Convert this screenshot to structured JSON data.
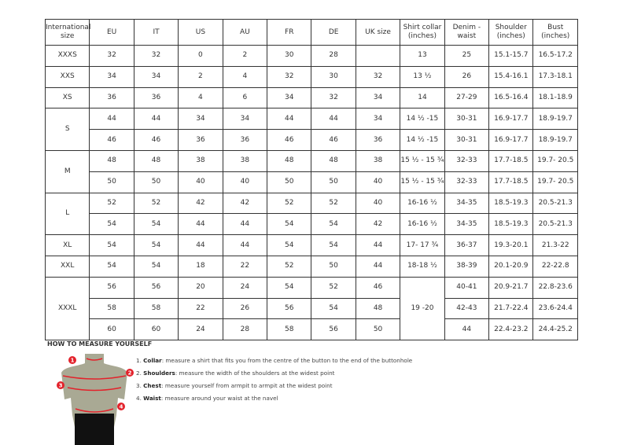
{
  "table": {
    "headers": [
      "International size",
      "EU",
      "IT",
      "US",
      "AU",
      "FR",
      "DE",
      "UK size",
      "Shirt collar (inches)",
      "Denim - waist",
      "Shoulder (inches)",
      "Bust (inches)"
    ],
    "groups": [
      {
        "size": "XXXS",
        "rows": [
          [
            "32",
            "32",
            "0",
            "2",
            "30",
            "28",
            "",
            "13",
            "25",
            "15.1-15.7",
            "16.5-17.2"
          ]
        ]
      },
      {
        "size": "XXS",
        "rows": [
          [
            "34",
            "34",
            "2",
            "4",
            "32",
            "30",
            "32",
            "13 ½",
            "26",
            "15.4-16.1",
            "17.3-18.1"
          ]
        ]
      },
      {
        "size": "XS",
        "rows": [
          [
            "36",
            "36",
            "4",
            "6",
            "34",
            "32",
            "34",
            "14",
            "27-29",
            "16.5-16.4",
            "18.1-18.9"
          ]
        ]
      },
      {
        "size": "S",
        "rows": [
          [
            "44",
            "44",
            "34",
            "34",
            "44",
            "44",
            "34",
            "14 ½ -15",
            "30-31",
            "16.9-17.7",
            "18.9-19.7"
          ],
          [
            "46",
            "46",
            "36",
            "36",
            "46",
            "46",
            "36",
            "14 ½ -15",
            "30-31",
            "16.9-17.7",
            "18.9-19.7"
          ]
        ]
      },
      {
        "size": "M",
        "rows": [
          [
            "48",
            "48",
            "38",
            "38",
            "48",
            "48",
            "38",
            "15 ½ - 15 ¾",
            "32-33",
            "17.7-18.5",
            "19.7- 20.5"
          ],
          [
            "50",
            "50",
            "40",
            "40",
            "50",
            "50",
            "40",
            "15 ½ - 15 ¾",
            "32-33",
            "17.7-18.5",
            "19.7- 20.5"
          ]
        ]
      },
      {
        "size": "L",
        "rows": [
          [
            "52",
            "52",
            "42",
            "42",
            "52",
            "52",
            "40",
            "16-16 ½",
            "34-35",
            "18.5-19.3",
            "20.5-21.3"
          ],
          [
            "54",
            "54",
            "44",
            "44",
            "54",
            "54",
            "42",
            "16-16 ½",
            "34-35",
            "18.5-19.3",
            "20.5-21.3"
          ]
        ]
      },
      {
        "size": "XL",
        "rows": [
          [
            "54",
            "54",
            "44",
            "44",
            "54",
            "54",
            "44",
            "17- 17 ¾",
            "36-37",
            "19.3-20.1",
            "21.3-22"
          ]
        ]
      },
      {
        "size": "XXL",
        "rows": [
          [
            "54",
            "54",
            "18",
            "22",
            "52",
            "50",
            "44",
            "18-18 ½",
            "38-39",
            "20.1-20.9",
            "22-22.8"
          ]
        ]
      },
      {
        "size": "XXXL",
        "collar": "19 -20",
        "rows": [
          [
            "56",
            "56",
            "20",
            "24",
            "54",
            "52",
            "46",
            "",
            "40-41",
            "20.9-21.7",
            "22.8-23.6"
          ],
          [
            "58",
            "58",
            "22",
            "26",
            "56",
            "54",
            "48",
            "",
            "42-43",
            "21.7-22.4",
            "23.6-24.4"
          ],
          [
            "60",
            "60",
            "24",
            "28",
            "58",
            "56",
            "50",
            "",
            "44",
            "22.4-23.2",
            "24.4-25.2"
          ]
        ]
      }
    ]
  },
  "guide": {
    "title": "HOW TO MEASURE YOURSELF",
    "steps": [
      {
        "num": "1.",
        "term": "Collar",
        "text": ": measure a shirt that fits you from the centre of the button to the end of the buttonhole"
      },
      {
        "num": "2.",
        "term": "Shoulders",
        "text": ": measure the width of the shoulders at the widest point"
      },
      {
        "num": "3.",
        "term": "Chest",
        "text": ": measure yourself from armpit to armpit at the widest point"
      },
      {
        "num": "4.",
        "term": "Waist",
        "text": ": measure around your waist at the navel"
      }
    ],
    "markers": [
      "1",
      "2",
      "3",
      "4"
    ],
    "accent": "#e3222b",
    "body_color": "#a9a994"
  }
}
